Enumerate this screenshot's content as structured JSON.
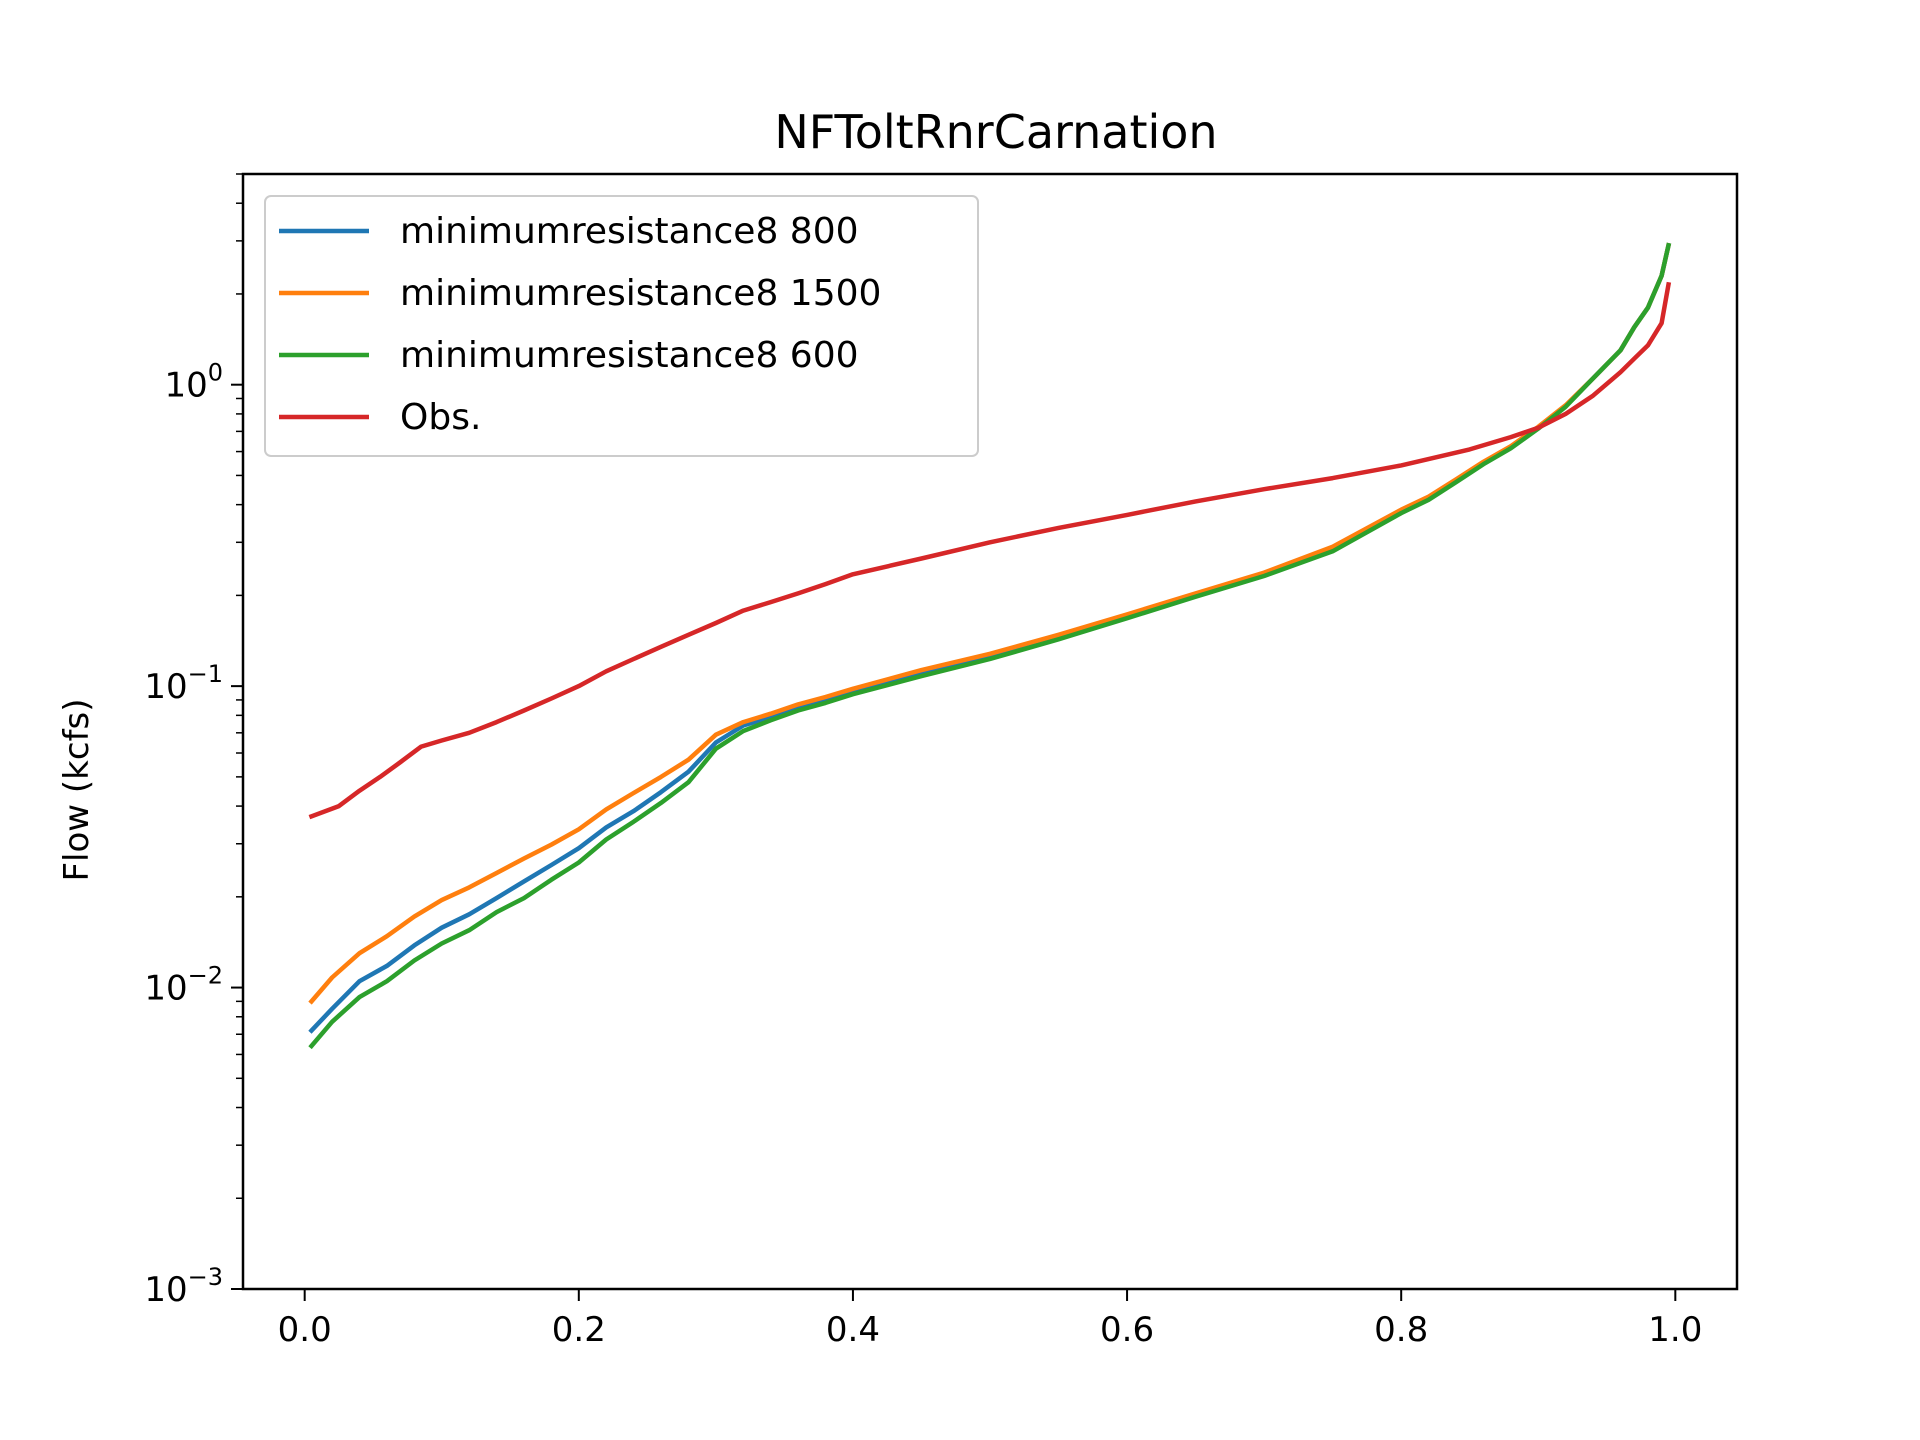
{
  "chart_data": {
    "type": "line",
    "title": "NFToltRnrCarnation",
    "xlabel": "",
    "ylabel": "Flow (kcfs)",
    "xlim": [
      -0.045,
      1.045
    ],
    "ylim": [
      0.001,
      5.0
    ],
    "yscale": "log",
    "xticks": [
      0.0,
      0.2,
      0.4,
      0.6,
      0.8,
      1.0
    ],
    "xtick_labels": [
      "0.0",
      "0.2",
      "0.4",
      "0.6",
      "0.8",
      "1.0"
    ],
    "yticks": [
      {
        "value": 1,
        "base": "10",
        "exp": "0"
      },
      {
        "value": 0.1,
        "base": "10",
        "exp": "−1"
      },
      {
        "value": 0.01,
        "base": "10",
        "exp": "−2"
      },
      {
        "value": 0.001,
        "base": "10",
        "exp": "−3"
      }
    ],
    "grid": false,
    "legend_position": "upper-left",
    "series": [
      {
        "name": "minimumresistance8 800",
        "color": "#1f77b4",
        "x": [
          0.005,
          0.02,
          0.04,
          0.06,
          0.08,
          0.1,
          0.12,
          0.14,
          0.16,
          0.18,
          0.2,
          0.22,
          0.24,
          0.26,
          0.28,
          0.3,
          0.32,
          0.34,
          0.36,
          0.38,
          0.4,
          0.45,
          0.5,
          0.55,
          0.6,
          0.65,
          0.7,
          0.75,
          0.8,
          0.82,
          0.84,
          0.86,
          0.88,
          0.9,
          0.92,
          0.94,
          0.96,
          0.97,
          0.98,
          0.99,
          0.995
        ],
        "y": [
          0.0072,
          0.0085,
          0.0105,
          0.0118,
          0.0138,
          0.0158,
          0.0175,
          0.0198,
          0.0225,
          0.0255,
          0.029,
          0.034,
          0.0385,
          0.0445,
          0.052,
          0.065,
          0.074,
          0.079,
          0.085,
          0.09,
          0.096,
          0.11,
          0.125,
          0.145,
          0.17,
          0.2,
          0.235,
          0.285,
          0.38,
          0.42,
          0.48,
          0.55,
          0.62,
          0.72,
          0.85,
          1.05,
          1.3,
          1.55,
          1.8,
          2.3,
          2.9
        ]
      },
      {
        "name": "minimumresistance8 1500",
        "color": "#ff7f0e",
        "x": [
          0.005,
          0.02,
          0.04,
          0.06,
          0.08,
          0.1,
          0.12,
          0.14,
          0.16,
          0.18,
          0.2,
          0.22,
          0.24,
          0.26,
          0.28,
          0.3,
          0.32,
          0.34,
          0.36,
          0.38,
          0.4,
          0.45,
          0.5,
          0.55,
          0.6,
          0.65,
          0.7,
          0.75,
          0.8,
          0.82,
          0.84,
          0.86,
          0.88,
          0.9,
          0.92,
          0.94,
          0.96,
          0.97,
          0.98,
          0.99,
          0.995
        ],
        "y": [
          0.009,
          0.0108,
          0.013,
          0.0148,
          0.0172,
          0.0195,
          0.0215,
          0.024,
          0.0268,
          0.0298,
          0.0335,
          0.039,
          0.0442,
          0.05,
          0.057,
          0.069,
          0.076,
          0.081,
          0.087,
          0.092,
          0.098,
          0.113,
          0.128,
          0.148,
          0.173,
          0.203,
          0.238,
          0.29,
          0.385,
          0.425,
          0.485,
          0.555,
          0.625,
          0.725,
          0.855,
          1.05,
          1.3,
          1.55,
          1.8,
          2.3,
          2.9
        ]
      },
      {
        "name": "minimumresistance8 600",
        "color": "#2ca02c",
        "x": [
          0.005,
          0.02,
          0.04,
          0.06,
          0.08,
          0.1,
          0.12,
          0.14,
          0.16,
          0.18,
          0.2,
          0.22,
          0.24,
          0.26,
          0.28,
          0.3,
          0.32,
          0.34,
          0.36,
          0.38,
          0.4,
          0.45,
          0.5,
          0.55,
          0.6,
          0.65,
          0.7,
          0.75,
          0.8,
          0.82,
          0.84,
          0.86,
          0.88,
          0.9,
          0.92,
          0.94,
          0.96,
          0.97,
          0.98,
          0.99,
          0.995
        ],
        "y": [
          0.0064,
          0.0077,
          0.0093,
          0.0105,
          0.0123,
          0.014,
          0.0155,
          0.0178,
          0.0198,
          0.0228,
          0.026,
          0.031,
          0.0355,
          0.041,
          0.048,
          0.062,
          0.071,
          0.077,
          0.083,
          0.088,
          0.094,
          0.108,
          0.123,
          0.143,
          0.168,
          0.198,
          0.232,
          0.28,
          0.375,
          0.415,
          0.475,
          0.545,
          0.615,
          0.715,
          0.845,
          1.05,
          1.3,
          1.55,
          1.8,
          2.3,
          2.9
        ]
      },
      {
        "name": "Obs.",
        "color": "#d62728",
        "x": [
          0.005,
          0.025,
          0.04,
          0.055,
          0.07,
          0.085,
          0.1,
          0.12,
          0.14,
          0.16,
          0.18,
          0.2,
          0.22,
          0.24,
          0.26,
          0.28,
          0.3,
          0.32,
          0.34,
          0.36,
          0.38,
          0.4,
          0.45,
          0.5,
          0.55,
          0.6,
          0.65,
          0.7,
          0.75,
          0.8,
          0.85,
          0.88,
          0.9,
          0.92,
          0.94,
          0.96,
          0.97,
          0.98,
          0.99,
          0.995
        ],
        "y": [
          0.037,
          0.04,
          0.045,
          0.05,
          0.056,
          0.063,
          0.066,
          0.07,
          0.076,
          0.083,
          0.091,
          0.1,
          0.112,
          0.123,
          0.135,
          0.148,
          0.162,
          0.178,
          0.19,
          0.203,
          0.218,
          0.235,
          0.265,
          0.3,
          0.335,
          0.37,
          0.41,
          0.45,
          0.49,
          0.54,
          0.61,
          0.67,
          0.72,
          0.8,
          0.92,
          1.1,
          1.22,
          1.35,
          1.6,
          2.15
        ]
      }
    ]
  }
}
